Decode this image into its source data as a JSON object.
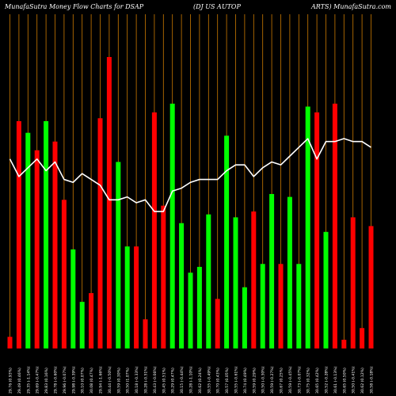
{
  "header": {
    "left": "MunafaSutra  Money Flow  Charts for DSAP",
    "middle": "(DJ US AUTOP",
    "right": "ARTS) MunafaSutra.com"
  },
  "colors": {
    "background": "#000000",
    "grid": "#cc7a00",
    "up_bar": "#00ff00",
    "down_bar": "#ff0000",
    "line": "#ffffff"
  },
  "chart_data": {
    "type": "bar",
    "title": "MunafaSutra  Money Flow  Charts for DSAP (DJ US AUTOP ARTS) MunafaSutra.com",
    "y_range": [
      0,
      100
    ],
    "grid": "vertical lines at each bar",
    "categories": [
      "29.76 (0.93%)",
      "29.49 (0.46%)",
      "29.35 (-1.14%)",
      "29.69 (-0.47%)",
      "29.83 (0.16%)",
      "29.78 (-0.60%)",
      "29.96 (-0.07%)",
      "29.98 (-0.39%)",
      "30.10 (0.07%)",
      "30.08 (0.47%)",
      "29.94 (-1.66%)",
      "30.44 (-0.50%)",
      "30.59 (0.30%)",
      "30.50 (1.07%)",
      "30.18 (-0.33%)",
      "30.28 (-0.51%)",
      "30.43 (-0.06%)",
      "30.45 (0.51%)",
      "30.29 (0.47%)",
      "30.15 (-0.44%)",
      "30.28 (-1.10%)",
      "30.62 (0.24%)",
      "30.55 (-0.49%)",
      "30.70 (0.43%)",
      "30.57 (0.05%)",
      "30.55 (-0.61%)",
      "30.74 (0.49%)",
      "30.59 (0.29%)",
      "30.50 (-0.30%)",
      "30.59 (-0.27%)",
      "30.67 (0.25%)",
      "30.59 (-0.45%)",
      "30.73 (-0.07%)",
      "30.75 (0.32%)",
      "30.65 (0.42%)",
      "30.52 (-0.28%)",
      "30.61 (-0.13%)",
      "30.65 (0.50%)",
      "30.50 (-0.41%)",
      "30.62 (0.12%)",
      "30.58 (-0.18%)"
    ],
    "series": [
      {
        "values": [
          4,
          78,
          74,
          68,
          78,
          71,
          51,
          34,
          16,
          19,
          79,
          100,
          64,
          35,
          35,
          10,
          81,
          49,
          84,
          43,
          26,
          28,
          46,
          17,
          73,
          45,
          21,
          47,
          29,
          53,
          29,
          52,
          29,
          83,
          81,
          40,
          84,
          3,
          45,
          7,
          42
        ],
        "colors": [
          "red",
          "red",
          "green",
          "red",
          "green",
          "red",
          "red",
          "green",
          "green",
          "red",
          "red",
          "red",
          "green",
          "green",
          "red",
          "red",
          "red",
          "red",
          "green",
          "green",
          "green",
          "green",
          "green",
          "red",
          "green",
          "green",
          "green",
          "red",
          "green",
          "green",
          "red",
          "green",
          "green",
          "green",
          "red",
          "green",
          "red",
          "red",
          "red",
          "red",
          "red"
        ]
      },
      {
        "type": "line",
        "values": [
          65,
          59,
          62,
          65,
          61,
          64,
          58,
          57,
          60,
          58,
          56,
          51,
          51,
          52,
          50,
          51,
          47,
          47,
          54,
          55,
          57,
          58,
          58,
          58,
          61,
          63,
          63,
          59,
          62,
          64,
          63,
          66,
          69,
          72,
          65,
          71,
          71,
          72,
          71,
          71,
          69
        ]
      }
    ]
  }
}
